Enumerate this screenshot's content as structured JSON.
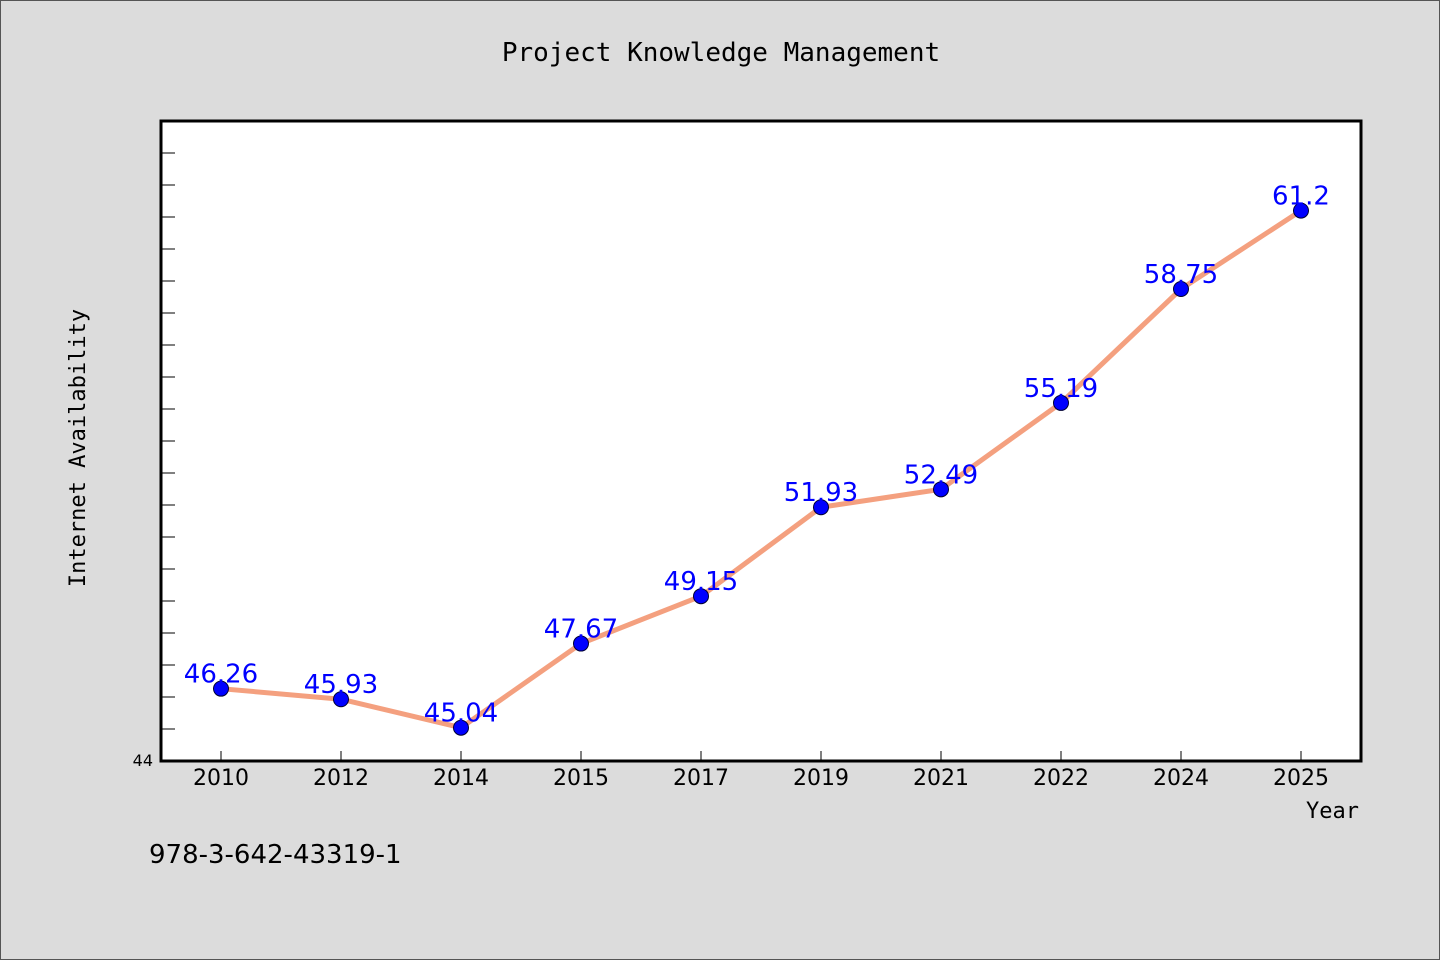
{
  "colors": {
    "background": "#dcdcdc",
    "plot_background": "#ffffff",
    "line": "#f4a07f",
    "marker": "#0000ff",
    "label": "#0000ff",
    "frame": "#000000"
  },
  "footer": {
    "isbn": "978-3-642-43319-1"
  },
  "chart_data": {
    "type": "line",
    "title": "Project Knowledge Management",
    "xlabel": "Year",
    "ylabel": "Internet Availability",
    "categories": [
      "2010",
      "2012",
      "2014",
      "2015",
      "2017",
      "2019",
      "2021",
      "2022",
      "2024",
      "2025"
    ],
    "series": [
      {
        "values": [
          46.26,
          45.93,
          45.04,
          47.67,
          49.15,
          51.93,
          52.49,
          55.19,
          58.75,
          61.2
        ]
      }
    ],
    "data_labels": [
      "46.26",
      "45.93",
      "45.04",
      "47.67",
      "49.15",
      "51.93",
      "52.49",
      "55.19",
      "58.75",
      "61.2"
    ],
    "ylim": [
      44,
      64
    ],
    "y_tick_labels": [
      "44"
    ],
    "y_minor_tick_step": 1,
    "grid": false,
    "legend": "none"
  }
}
